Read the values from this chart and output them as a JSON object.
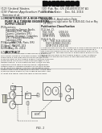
{
  "fig_bg": "#f5f4f0",
  "text_color": "#2a2a2a",
  "diagram_color": "#555555",
  "header_line_color": "#aaaaaa",
  "barcode_color": "#111111",
  "page_bg": "#f8f7f3"
}
